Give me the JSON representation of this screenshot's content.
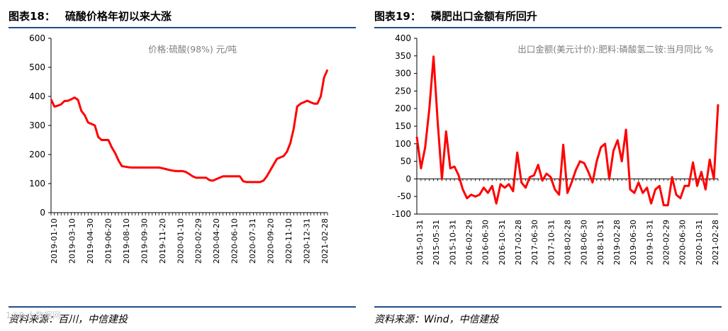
{
  "colors": {
    "line": "#ff0000",
    "rule": "#1f4e8c",
    "axis": "#000000",
    "annotation": "#7f7f7f"
  },
  "watermark": "1⑥8 大数据网",
  "figures": [
    {
      "label": "图表18：",
      "title": "硫酸价格年初以来大涨",
      "source": "资料来源：百川，中信建投"
    },
    {
      "label": "图表19：",
      "title": "磷肥出口金额有所回升",
      "source": "资料来源：Wind，中信建投"
    }
  ],
  "chart_data": [
    {
      "type": "line",
      "title": "硫酸价格年初以来大涨",
      "series": [
        {
          "name": "价格:硫酸(98%)  元/吨",
          "values": [
            390,
            365,
            368,
            373,
            384,
            385,
            390,
            396,
            388,
            350,
            335,
            310,
            305,
            300,
            260,
            250,
            250,
            250,
            225,
            205,
            180,
            160,
            158,
            156,
            155,
            155,
            155,
            155,
            155,
            155,
            155,
            155,
            155,
            153,
            150,
            147,
            145,
            143,
            143,
            143,
            140,
            133,
            125,
            120,
            120,
            120,
            120,
            112,
            110,
            115,
            120,
            125,
            125,
            125,
            125,
            125,
            125,
            108,
            105,
            105,
            105,
            105,
            105,
            110,
            125,
            145,
            165,
            185,
            190,
            195,
            210,
            240,
            290,
            365,
            375,
            380,
            385,
            380,
            375,
            375,
            400,
            465,
            492
          ]
        }
      ],
      "x_tick_labels": [
        "2019-01-10",
        "2019-03-10",
        "2019-04-30",
        "2019-06-20",
        "2019-08-10",
        "2019-09-30",
        "2019-11-20",
        "2020-01-10",
        "2020-02-29",
        "2020-04-20",
        "2020-06-10",
        "2020-07-31",
        "2020-09-20",
        "2020-11-10",
        "2020-12-31",
        "2021-02-28"
      ],
      "y_ticks": [
        "0",
        "100",
        "200",
        "300",
        "400",
        "500",
        "600"
      ],
      "ylim": [
        0,
        600
      ],
      "annotation": "价格:硫酸(98%)  元/吨",
      "grid": false
    },
    {
      "type": "line",
      "title": "磷肥出口金额有所回升",
      "series": [
        {
          "name": "出口金额(美元计价):肥料:磷酸氢二铵:当月同比  %",
          "values": [
            120,
            30,
            90,
            200,
            348,
            160,
            0,
            135,
            30,
            35,
            10,
            -30,
            -55,
            -45,
            -50,
            -45,
            -25,
            -40,
            -20,
            -70,
            -15,
            -25,
            -15,
            -35,
            75,
            -10,
            -25,
            5,
            10,
            40,
            -5,
            15,
            5,
            -30,
            -45,
            97,
            -40,
            -10,
            25,
            50,
            45,
            20,
            -10,
            50,
            90,
            100,
            0,
            80,
            110,
            50,
            140,
            -30,
            -40,
            -10,
            -40,
            -25,
            -70,
            -30,
            -20,
            -75,
            -75,
            5,
            -45,
            -55,
            -20,
            -20,
            47,
            -20,
            20,
            -30,
            55,
            0,
            212
          ]
        }
      ],
      "x_tick_labels": [
        "2015-01-31",
        "2015-05-31",
        "2015-10-31",
        "2016-02-29",
        "2016-06-30",
        "2016-10-31",
        "2017-02-28",
        "2017-06-30",
        "2017-10-31",
        "2018-02-28",
        "2018-06-30",
        "2018-10-31",
        "2019-02-28",
        "2019-06-30",
        "2019-10-31",
        "2020-02-29",
        "2020-06-30",
        "2020-10-31",
        "2021-02-28"
      ],
      "y_ticks": [
        "-100",
        "-50",
        "0",
        "50",
        "100",
        "150",
        "200",
        "250",
        "300",
        "350",
        "400"
      ],
      "ylim": [
        -100,
        400
      ],
      "annotation": "出口金额(美元计价):肥料:磷酸氢二铵:当月同比  %",
      "grid": false
    }
  ]
}
